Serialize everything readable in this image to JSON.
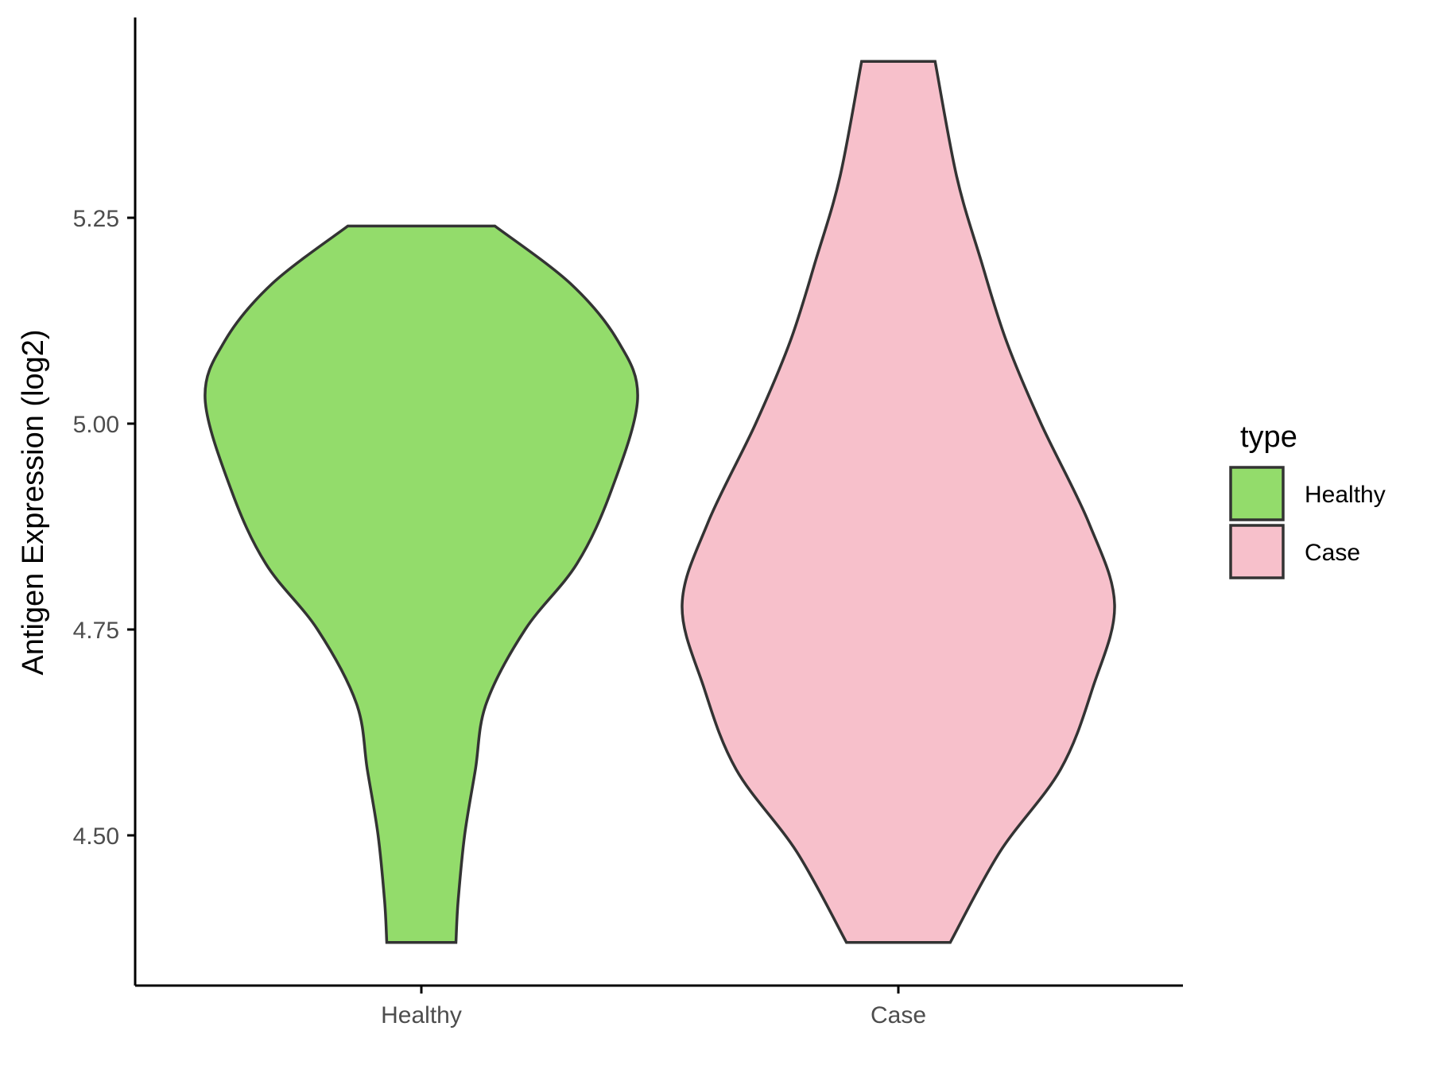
{
  "chart_data": {
    "type": "violin",
    "xlabel": "",
    "ylabel": "Antigen Expression (log2)",
    "categories": [
      "Healthy",
      "Case"
    ],
    "yticks": [
      "4.50",
      "4.75",
      "5.00",
      "5.25"
    ],
    "ylim": [
      4.32,
      5.5
    ],
    "legend": {
      "title": "type",
      "position": "right",
      "entries": [
        {
          "label": "Healthy",
          "color": "#93dc6b"
        },
        {
          "label": "Case",
          "color": "#f7c0cb"
        }
      ]
    },
    "grid": false,
    "series": [
      {
        "category": "Healthy",
        "color": "#93dc6b",
        "min": 4.37,
        "max": 5.24,
        "density_profile": [
          {
            "y": 4.37,
            "half_width": 0.16
          },
          {
            "y": 4.42,
            "half_width": 0.17
          },
          {
            "y": 4.5,
            "half_width": 0.2
          },
          {
            "y": 4.58,
            "half_width": 0.25
          },
          {
            "y": 4.66,
            "half_width": 0.3
          },
          {
            "y": 4.75,
            "half_width": 0.48
          },
          {
            "y": 4.83,
            "half_width": 0.72
          },
          {
            "y": 4.92,
            "half_width": 0.88
          },
          {
            "y": 5.03,
            "half_width": 1.0
          },
          {
            "y": 5.1,
            "half_width": 0.91
          },
          {
            "y": 5.17,
            "half_width": 0.69
          },
          {
            "y": 5.24,
            "half_width": 0.34
          }
        ]
      },
      {
        "category": "Case",
        "color": "#f7c0cb",
        "min": 4.37,
        "max": 5.44,
        "density_profile": [
          {
            "y": 4.37,
            "half_width": 0.24
          },
          {
            "y": 4.48,
            "half_width": 0.47
          },
          {
            "y": 4.58,
            "half_width": 0.75
          },
          {
            "y": 4.68,
            "half_width": 0.9
          },
          {
            "y": 4.78,
            "half_width": 1.0
          },
          {
            "y": 4.88,
            "half_width": 0.88
          },
          {
            "y": 5.0,
            "half_width": 0.66
          },
          {
            "y": 5.1,
            "half_width": 0.5
          },
          {
            "y": 5.2,
            "half_width": 0.38
          },
          {
            "y": 5.3,
            "half_width": 0.27
          },
          {
            "y": 5.44,
            "half_width": 0.17
          }
        ]
      }
    ]
  }
}
